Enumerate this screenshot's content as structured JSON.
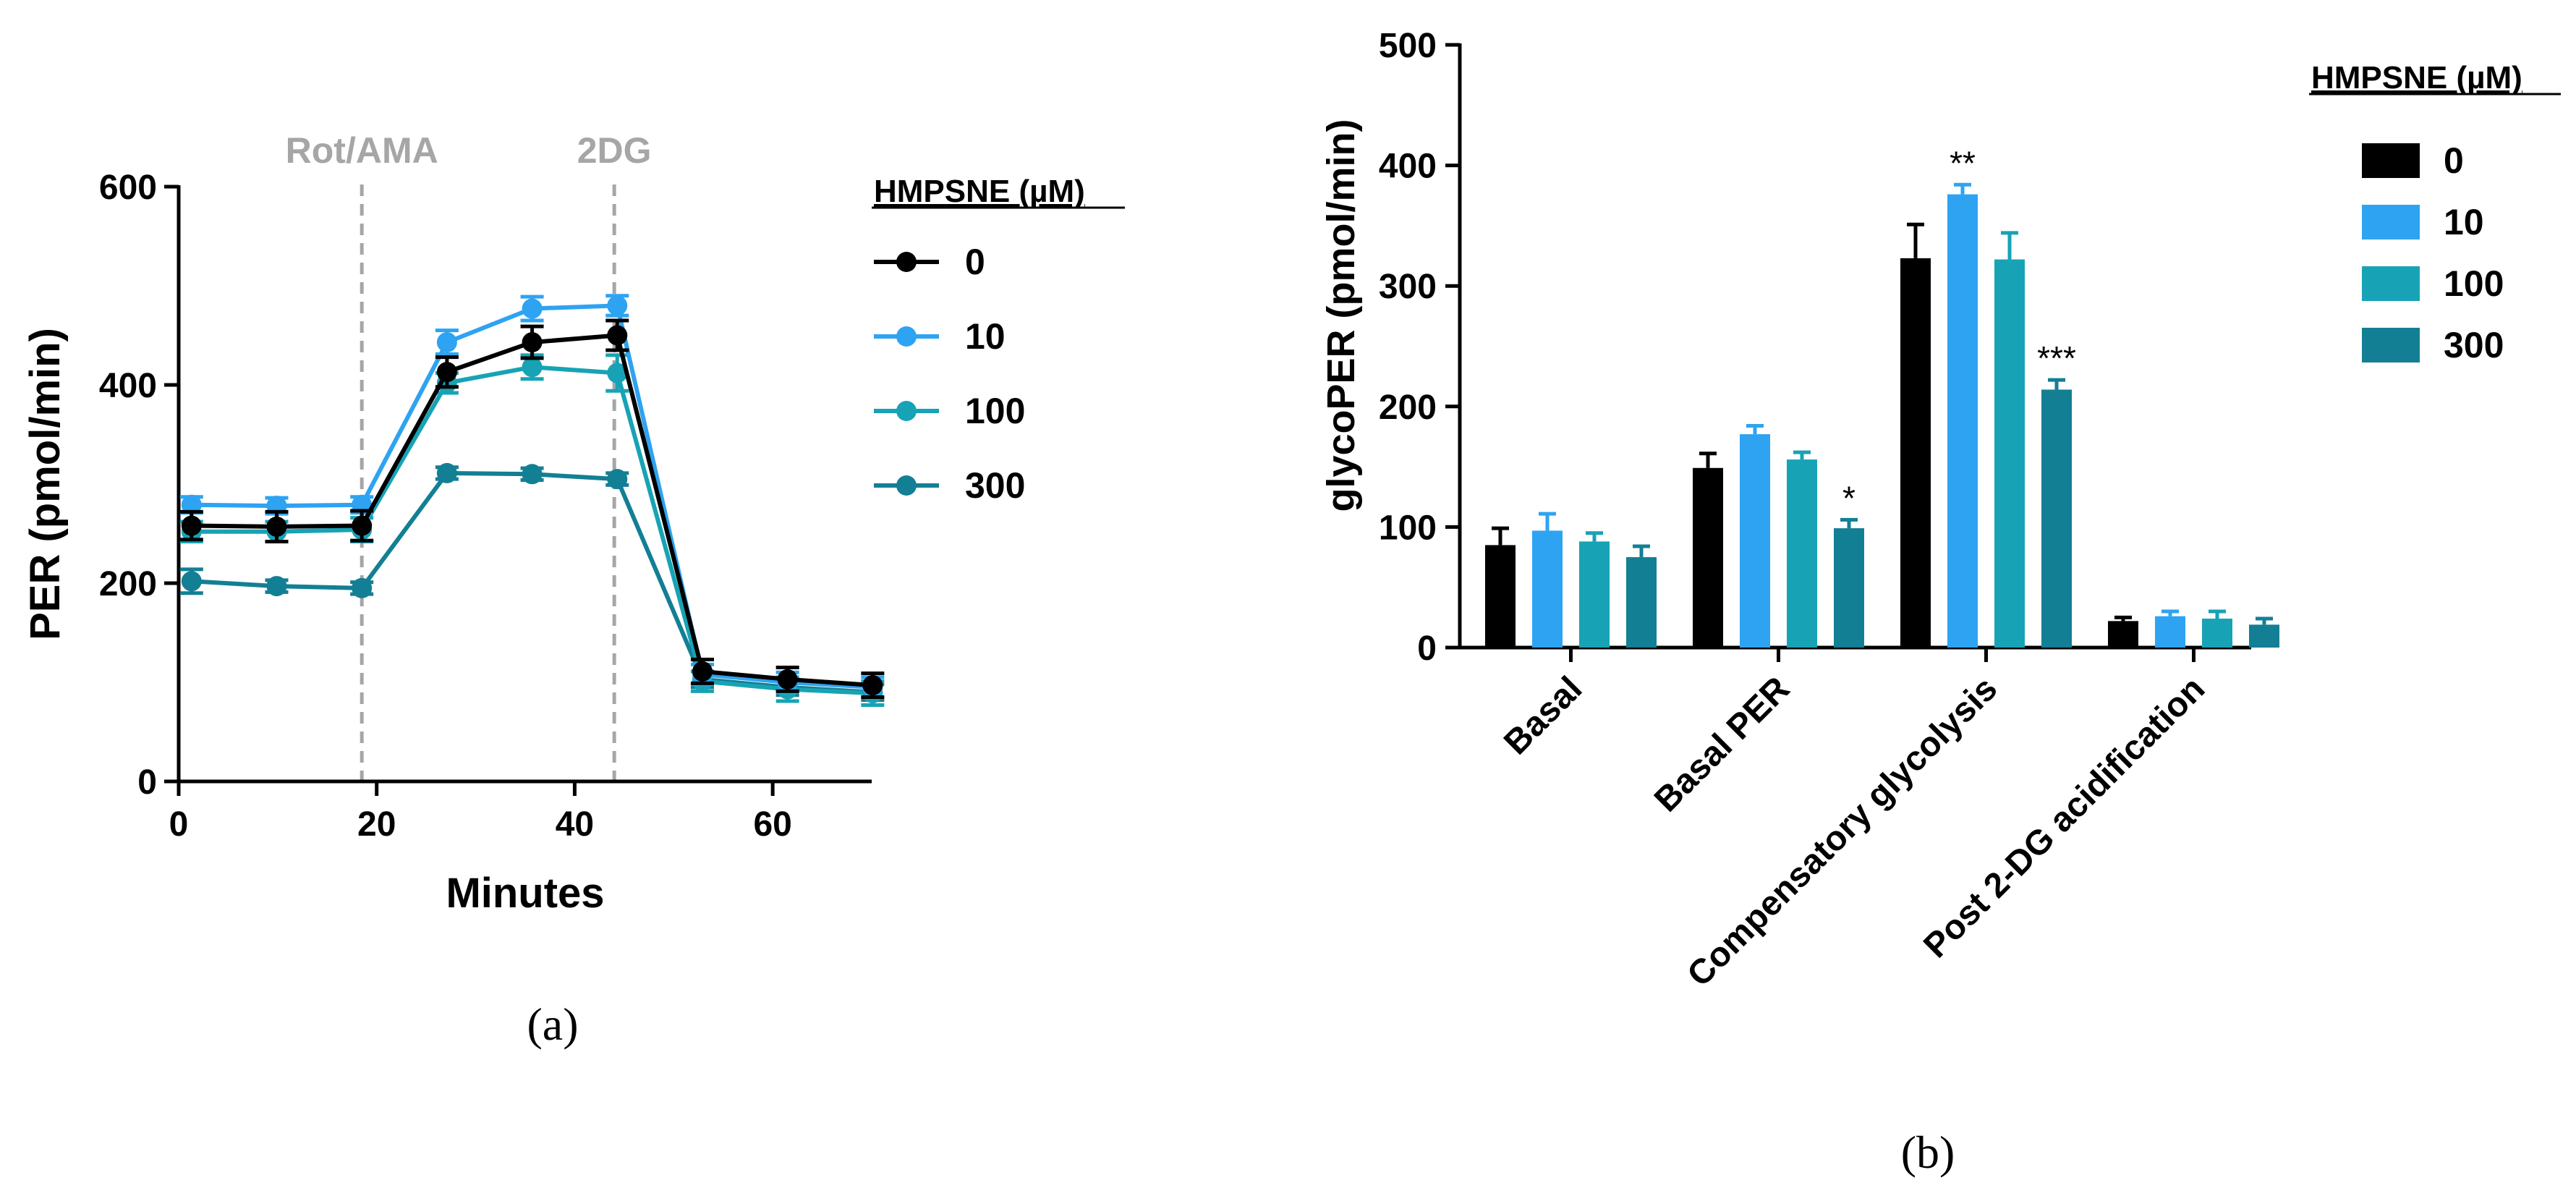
{
  "colors": {
    "s0": "#000000",
    "s10": "#2ea3f2",
    "s100": "#17a3b5",
    "s300": "#137f94",
    "annotation": "#a6a6a6",
    "axis": "#000000"
  },
  "chart_data": [
    {
      "type": "line",
      "panel_label": "(a)",
      "xlabel": "Minutes",
      "ylabel": "PER (pmol/min)",
      "xlim": [
        0,
        70
      ],
      "ylim": [
        0,
        600
      ],
      "xticks": [
        "0",
        "20",
        "40",
        "60"
      ],
      "yticks": [
        "0",
        "200",
        "400",
        "600"
      ],
      "x": [
        1.3,
        9.9,
        18.5,
        27.1,
        35.7,
        44.3,
        52.9,
        61.5,
        70.1
      ],
      "legend_title": "HMPSNE (µM)",
      "annotations": [
        {
          "label": "Rot/AMA",
          "x": 18.5
        },
        {
          "label": "2DG",
          "x": 44.0
        }
      ],
      "series": [
        {
          "name": "0",
          "color_key": "s0",
          "values": [
            258,
            257,
            258,
            413,
            443,
            450,
            111,
            103,
            97
          ],
          "errors": [
            14,
            15,
            15,
            15,
            16,
            15,
            12,
            12,
            12
          ]
        },
        {
          "name": "10",
          "color_key": "s10",
          "values": [
            279,
            278,
            279,
            443,
            477,
            480,
            108,
            100,
            95
          ],
          "errors": [
            8,
            8,
            8,
            12,
            12,
            10,
            10,
            10,
            10
          ]
        },
        {
          "name": "100",
          "color_key": "s100",
          "values": [
            252,
            252,
            254,
            402,
            418,
            412,
            101,
            93,
            89
          ],
          "errors": [
            10,
            10,
            12,
            10,
            12,
            18,
            10,
            12,
            12
          ]
        },
        {
          "name": "300",
          "color_key": "s300",
          "values": [
            202,
            197,
            195,
            311,
            310,
            305,
            103,
            95,
            90
          ],
          "errors": [
            12,
            6,
            6,
            6,
            6,
            6,
            8,
            8,
            8
          ]
        }
      ]
    },
    {
      "type": "bar",
      "panel_label": "(b)",
      "ylabel": "glycoPER (pmol/min)",
      "ylim": [
        0,
        500
      ],
      "yticks": [
        "0",
        "100",
        "200",
        "300",
        "400",
        "500"
      ],
      "categories": [
        "Basal",
        "Basal PER",
        "Compensatory glycolysis",
        "Post 2-DG acidification"
      ],
      "legend_title": "HMPSNE (µM)",
      "series": [
        {
          "name": "0",
          "color_key": "s0",
          "values": [
            85,
            149,
            323,
            22
          ],
          "errors": [
            14,
            12,
            28,
            3
          ]
        },
        {
          "name": "10",
          "color_key": "s10",
          "values": [
            97,
            177,
            376,
            26
          ],
          "errors": [
            14,
            7,
            8,
            4
          ]
        },
        {
          "name": "100",
          "color_key": "s100",
          "values": [
            88,
            156,
            322,
            24
          ],
          "errors": [
            7,
            6,
            22,
            6
          ]
        },
        {
          "name": "300",
          "color_key": "s300",
          "values": [
            75,
            99,
            214,
            19
          ],
          "errors": [
            9,
            7,
            8,
            5
          ]
        }
      ],
      "significance": [
        {
          "category": 1,
          "series": 3,
          "label": "*"
        },
        {
          "category": 2,
          "series": 1,
          "label": "**"
        },
        {
          "category": 2,
          "series": 3,
          "label": "***"
        }
      ]
    }
  ]
}
